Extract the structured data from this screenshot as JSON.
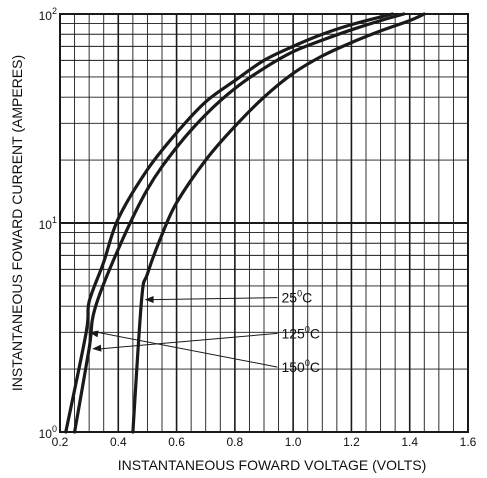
{
  "chart_data": {
    "type": "line",
    "title": "",
    "xlabel": "INSTANTANEOUS FOWARD VOLTAGE  (VOLTS)",
    "ylabel": "INSTANTANEOUS FOWARD CURRENT  (AMPERES)",
    "xlim": [
      0.2,
      1.6
    ],
    "ylim": [
      1,
      100
    ],
    "yscale": "log",
    "grid": true,
    "xticks": [
      0.2,
      0.4,
      0.6,
      0.8,
      1.0,
      1.2,
      1.4,
      1.6
    ],
    "xtick_labels": [
      "0.2",
      "0.4",
      "0.6",
      "0.8",
      "1.0",
      "1.2",
      "1.4",
      "1.6"
    ],
    "ytick_labels": [
      {
        "value": 1,
        "base": "10",
        "exp": "0"
      },
      {
        "value": 10,
        "base": "10",
        "exp": "1"
      },
      {
        "value": 100,
        "base": "10",
        "exp": "2"
      }
    ],
    "series": [
      {
        "name": "25°C",
        "label_base": "25",
        "label_sup": "0",
        "label_unit": "C",
        "x": [
          0.45,
          0.48,
          0.5,
          0.55,
          0.6,
          0.7,
          0.8,
          0.9,
          1.0,
          1.1,
          1.2,
          1.3,
          1.4,
          1.45
        ],
        "y": [
          1.0,
          4.3,
          5.7,
          8.8,
          12.5,
          20.0,
          29.0,
          40.0,
          52.0,
          63.0,
          73.0,
          83.0,
          93.0,
          100.0
        ]
      },
      {
        "name": "125°C",
        "label_base": "125",
        "label_sup": "0",
        "label_unit": "C",
        "x": [
          0.25,
          0.3,
          0.32,
          0.4,
          0.5,
          0.6,
          0.7,
          0.8,
          0.9,
          1.0,
          1.1,
          1.2,
          1.3,
          1.38
        ],
        "y": [
          1.0,
          2.5,
          3.9,
          7.5,
          14.5,
          23.0,
          33.0,
          44.0,
          55.0,
          66.0,
          75.0,
          84.0,
          93.0,
          100.0
        ]
      },
      {
        "name": "150°C",
        "label_base": "150",
        "label_sup": "0",
        "label_unit": "C",
        "x": [
          0.22,
          0.29,
          0.3,
          0.35,
          0.4,
          0.5,
          0.6,
          0.7,
          0.8,
          0.9,
          1.0,
          1.1,
          1.2,
          1.34
        ],
        "y": [
          1.0,
          3.0,
          4.2,
          6.5,
          10.5,
          18.0,
          27.0,
          38.0,
          48.0,
          60.0,
          70.0,
          80.0,
          89.0,
          100.0
        ]
      }
    ],
    "legend_placement": "inline callouts, lower-middle",
    "colors": {
      "line": "#1a1a1a",
      "grid": "#1a1a1a",
      "background": "#ffffff"
    }
  }
}
